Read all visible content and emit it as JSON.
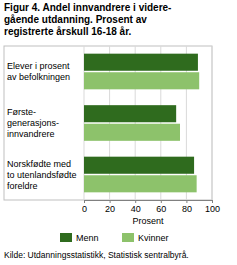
{
  "chart_data": {
    "type": "bar",
    "orientation": "horizontal",
    "title": "Figur 4. Andel innvandrere i videre-\ngående utdanning. Prosent av\nregistrerte årskull 16-18 år.",
    "categories": [
      "Elever i prosent\nav befolkningen",
      "Første-\ngenerasjons-\ninnvandrere",
      "Norskfødte med\nto utenlandsfødte\nforeldre"
    ],
    "series": [
      {
        "name": "Menn",
        "color": "#2f6b1e",
        "values": [
          89,
          72,
          86
        ]
      },
      {
        "name": "Kvinner",
        "color": "#8dc26b",
        "values": [
          90,
          75,
          88
        ]
      }
    ],
    "xlim": [
      0,
      100
    ],
    "xticks": [
      0,
      20,
      40,
      60,
      80,
      100
    ],
    "xlabel": "Prosent",
    "grid": true,
    "legend": "bottom",
    "source": "Kilde: Utdanningsstatistikk, Statistisk sentralbyrå."
  }
}
